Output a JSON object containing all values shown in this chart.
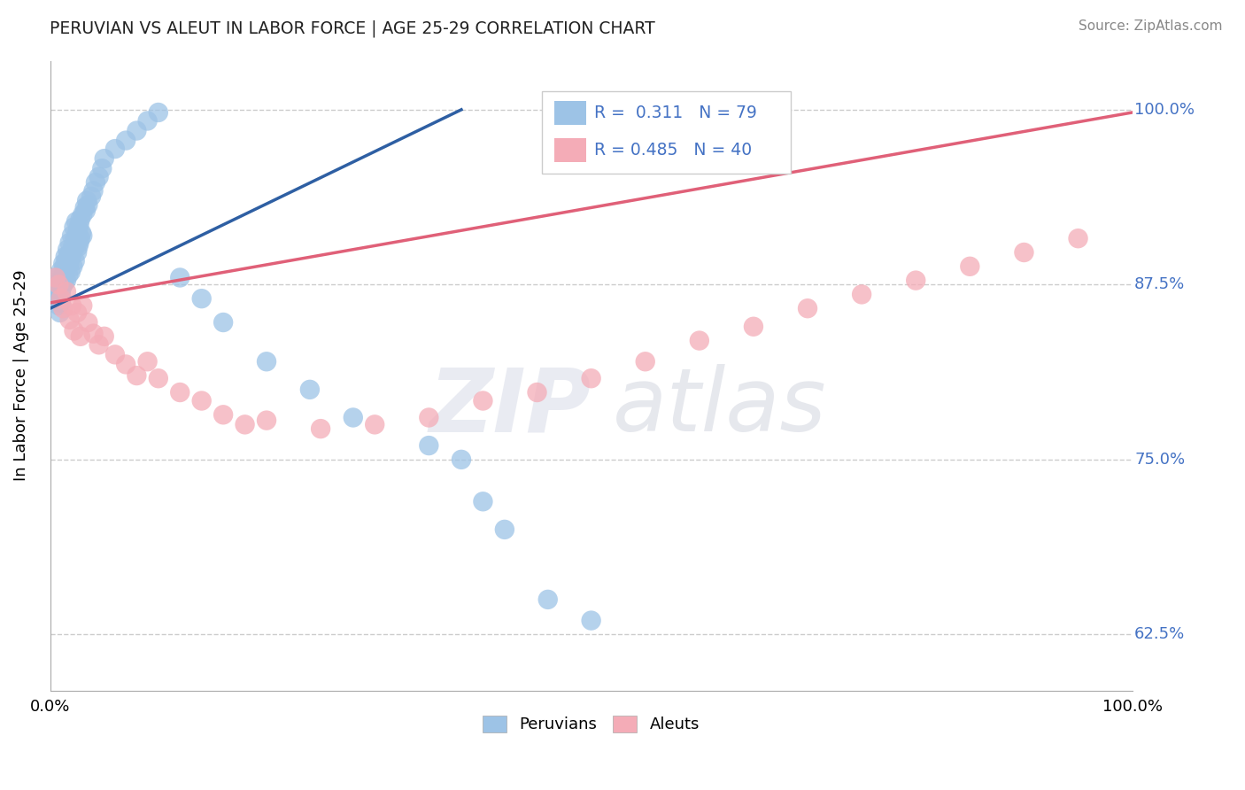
{
  "title": "PERUVIAN VS ALEUT IN LABOR FORCE | AGE 25-29 CORRELATION CHART",
  "source_text": "Source: ZipAtlas.com",
  "ylabel": "In Labor Force | Age 25-29",
  "xlim": [
    0.0,
    1.0
  ],
  "ylim": [
    0.585,
    1.035
  ],
  "yticks": [
    0.625,
    0.75,
    0.875,
    1.0
  ],
  "ytick_labels": [
    "62.5%",
    "75.0%",
    "87.5%",
    "100.0%"
  ],
  "xtick_labels": [
    "0.0%",
    "100.0%"
  ],
  "R_blue": 0.311,
  "N_blue": 79,
  "R_pink": 0.485,
  "N_pink": 40,
  "blue_color": "#9dc3e6",
  "pink_color": "#f4acb7",
  "blue_line_color": "#2e5fa3",
  "pink_line_color": "#e06078",
  "blue_points_x": [
    0.005,
    0.005,
    0.006,
    0.006,
    0.007,
    0.007,
    0.008,
    0.008,
    0.009,
    0.009,
    0.01,
    0.01,
    0.01,
    0.01,
    0.011,
    0.011,
    0.012,
    0.012,
    0.013,
    0.013,
    0.014,
    0.014,
    0.015,
    0.015,
    0.016,
    0.016,
    0.017,
    0.017,
    0.018,
    0.018,
    0.019,
    0.019,
    0.02,
    0.02,
    0.021,
    0.021,
    0.022,
    0.022,
    0.023,
    0.023,
    0.024,
    0.025,
    0.025,
    0.026,
    0.026,
    0.027,
    0.027,
    0.028,
    0.028,
    0.029,
    0.03,
    0.03,
    0.032,
    0.033,
    0.034,
    0.035,
    0.038,
    0.04,
    0.042,
    0.045,
    0.048,
    0.05,
    0.06,
    0.07,
    0.08,
    0.09,
    0.1,
    0.12,
    0.14,
    0.16,
    0.2,
    0.24,
    0.28,
    0.35,
    0.38,
    0.4,
    0.42,
    0.46,
    0.5
  ],
  "blue_points_y": [
    0.88,
    0.875,
    0.87,
    0.865,
    0.875,
    0.868,
    0.872,
    0.86,
    0.878,
    0.855,
    0.885,
    0.876,
    0.869,
    0.862,
    0.88,
    0.873,
    0.89,
    0.882,
    0.888,
    0.876,
    0.895,
    0.885,
    0.892,
    0.878,
    0.9,
    0.888,
    0.896,
    0.882,
    0.905,
    0.89,
    0.898,
    0.884,
    0.91,
    0.895,
    0.902,
    0.888,
    0.916,
    0.9,
    0.908,
    0.892,
    0.92,
    0.912,
    0.898,
    0.915,
    0.902,
    0.918,
    0.905,
    0.922,
    0.908,
    0.912,
    0.925,
    0.91,
    0.93,
    0.928,
    0.935,
    0.932,
    0.938,
    0.942,
    0.948,
    0.952,
    0.958,
    0.965,
    0.972,
    0.978,
    0.985,
    0.992,
    0.998,
    0.88,
    0.865,
    0.848,
    0.82,
    0.8,
    0.78,
    0.76,
    0.75,
    0.72,
    0.7,
    0.65,
    0.635
  ],
  "pink_points_x": [
    0.005,
    0.008,
    0.01,
    0.012,
    0.015,
    0.018,
    0.02,
    0.022,
    0.025,
    0.028,
    0.03,
    0.035,
    0.04,
    0.045,
    0.05,
    0.06,
    0.07,
    0.08,
    0.09,
    0.1,
    0.12,
    0.14,
    0.16,
    0.18,
    0.2,
    0.25,
    0.3,
    0.35,
    0.4,
    0.45,
    0.5,
    0.55,
    0.6,
    0.65,
    0.7,
    0.75,
    0.8,
    0.85,
    0.9,
    0.95
  ],
  "pink_points_y": [
    0.88,
    0.875,
    0.865,
    0.858,
    0.87,
    0.85,
    0.86,
    0.842,
    0.855,
    0.838,
    0.86,
    0.848,
    0.84,
    0.832,
    0.838,
    0.825,
    0.818,
    0.81,
    0.82,
    0.808,
    0.798,
    0.792,
    0.782,
    0.775,
    0.778,
    0.772,
    0.775,
    0.78,
    0.792,
    0.798,
    0.808,
    0.82,
    0.835,
    0.845,
    0.858,
    0.868,
    0.878,
    0.888,
    0.898,
    0.908
  ],
  "blue_line_x": [
    0.0,
    0.38
  ],
  "blue_line_y_start": 0.858,
  "blue_line_y_end": 1.0,
  "pink_line_x": [
    0.0,
    1.0
  ],
  "pink_line_y_start": 0.862,
  "pink_line_y_end": 0.998
}
